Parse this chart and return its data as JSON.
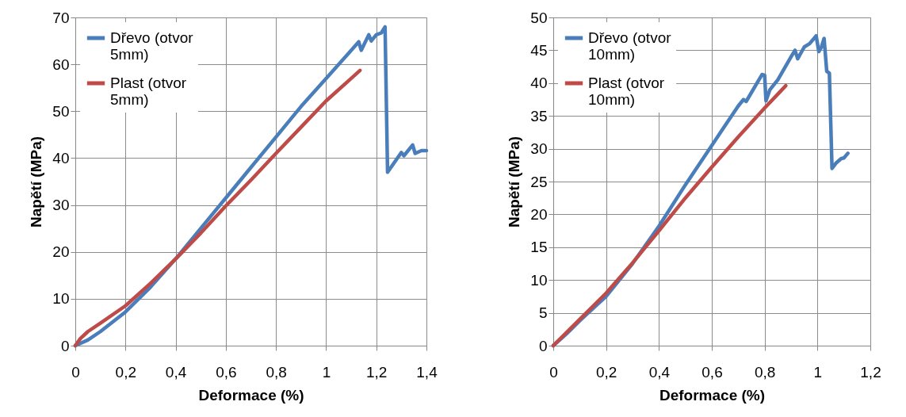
{
  "chart_data": [
    {
      "type": "line",
      "xlabel": "Deformace (%)",
      "ylabel": "Napětí (MPa)",
      "xlim": [
        0,
        1.4
      ],
      "xticks": [
        {
          "value": 0,
          "label": "0"
        },
        {
          "value": 0.2,
          "label": "0,2"
        },
        {
          "value": 0.4,
          "label": "0,4"
        },
        {
          "value": 0.6,
          "label": "0,6"
        },
        {
          "value": 0.8,
          "label": "0,8"
        },
        1,
        {
          "value": 1.2,
          "label": "1,2"
        },
        {
          "value": 1.4,
          "label": "1,4"
        }
      ],
      "ylim": [
        0,
        70
      ],
      "yticks": [
        {
          "value": 0,
          "label": "0"
        },
        10,
        20,
        30,
        40,
        50,
        60,
        70
      ],
      "grid": true,
      "legend": "top left",
      "series": [
        {
          "name": "Dřevo (otvor 5mm)",
          "color": "#4a7ebb",
          "x": [
            0,
            0.05,
            0.1,
            0.2,
            0.3,
            0.4,
            0.5,
            0.6,
            0.7,
            0.8,
            0.9,
            1.0,
            1.05,
            1.1,
            1.13,
            1.14,
            1.17,
            1.18,
            1.2,
            1.22,
            1.235,
            1.245,
            1.3,
            1.31,
            1.345,
            1.355,
            1.38,
            1.4
          ],
          "values": [
            0,
            1.2,
            3,
            7.2,
            12.5,
            18.5,
            25,
            31.5,
            38,
            44.5,
            51,
            57,
            60,
            63,
            64.8,
            63,
            66.3,
            65,
            66.3,
            66.7,
            68,
            37,
            41.2,
            40.5,
            42.8,
            41,
            41.6,
            41.6
          ]
        },
        {
          "name": "Plast (otvor 5mm)",
          "color": "#be4b48",
          "x": [
            0,
            0.02,
            0.05,
            0.1,
            0.2,
            0.3,
            0.4,
            0.5,
            0.6,
            0.7,
            0.8,
            0.9,
            1.0,
            1.1,
            1.135
          ],
          "values": [
            0,
            1.5,
            3,
            4.8,
            8.5,
            13.3,
            18.5,
            24,
            29.8,
            35.3,
            41,
            46.6,
            52.2,
            57,
            58.7
          ]
        }
      ]
    },
    {
      "type": "line",
      "xlabel": "Deformace (%)",
      "ylabel": "Napětí (MPa)",
      "xlim": [
        0,
        1.2
      ],
      "xticks": [
        {
          "value": 0,
          "label": "0"
        },
        {
          "value": 0.2,
          "label": "0,2"
        },
        {
          "value": 0.4,
          "label": "0,4"
        },
        {
          "value": 0.6,
          "label": "0,6"
        },
        {
          "value": 0.8,
          "label": "0,8"
        },
        1,
        {
          "value": 1.2,
          "label": "1,2"
        }
      ],
      "ylim": [
        0,
        50
      ],
      "yticks": [
        {
          "value": 0,
          "label": "0"
        },
        5,
        10,
        15,
        20,
        25,
        30,
        35,
        40,
        45,
        50
      ],
      "grid": true,
      "legend": "top left",
      "series": [
        {
          "name": "Dřevo (otvor 10mm)",
          "color": "#4a7ebb",
          "x": [
            0,
            0.05,
            0.1,
            0.2,
            0.3,
            0.4,
            0.5,
            0.6,
            0.65,
            0.7,
            0.72,
            0.73,
            0.79,
            0.8,
            0.805,
            0.82,
            0.85,
            0.9,
            0.915,
            0.925,
            0.95,
            0.97,
            0.995,
            1.005,
            1.015,
            1.025,
            1.035,
            1.045,
            1.055,
            1.07,
            1.09,
            1.1,
            1.115
          ],
          "values": [
            0,
            1.8,
            3.8,
            7.5,
            12.5,
            18.2,
            24.5,
            30.5,
            33.5,
            36.5,
            37.5,
            37.2,
            41.3,
            41.2,
            37.3,
            39,
            40.5,
            44,
            45,
            43.7,
            45.5,
            46,
            47.2,
            44.8,
            45.5,
            46.8,
            41.8,
            41.5,
            27,
            27.8,
            28.5,
            28.6,
            29.3
          ]
        },
        {
          "name": "Plast (otvor 10mm)",
          "color": "#be4b48",
          "x": [
            0,
            0.1,
            0.2,
            0.3,
            0.4,
            0.5,
            0.6,
            0.7,
            0.8,
            0.88
          ],
          "values": [
            0,
            4,
            8,
            12.6,
            17.5,
            22.5,
            27.2,
            31.8,
            36.2,
            39.6
          ]
        }
      ]
    }
  ]
}
